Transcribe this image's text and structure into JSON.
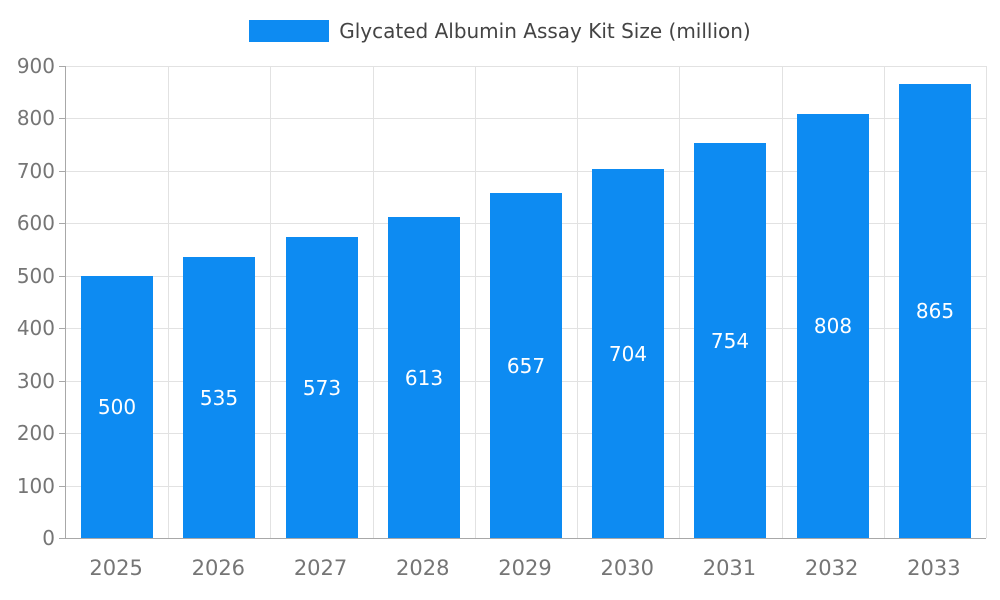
{
  "chart_data": {
    "type": "bar",
    "title": "Glycated Albumin Assay Kit Size (million)",
    "categories": [
      "2025",
      "2026",
      "2027",
      "2028",
      "2029",
      "2030",
      "2031",
      "2032",
      "2033"
    ],
    "values": [
      500,
      535,
      573,
      613,
      657,
      704,
      754,
      808,
      865
    ],
    "series": [
      {
        "name": "Glycated Albumin Assay Kit Size (million)",
        "values": [
          500,
          535,
          573,
          613,
          657,
          704,
          754,
          808,
          865
        ]
      }
    ],
    "xlabel": "",
    "ylabel": "",
    "ylim": [
      0,
      900
    ],
    "yticks": [
      0,
      100,
      200,
      300,
      400,
      500,
      600,
      700,
      800,
      900
    ],
    "grid": true,
    "legend_position": "top",
    "bar_color": "#0d8bf2",
    "value_label_color": "#ffffff",
    "axis_label_color": "#757575",
    "legend_text_color": "#444444",
    "gridline_color": "#e2e2e2",
    "axis_line_color": "#a8a8a8",
    "background_color": "#ffffff"
  }
}
